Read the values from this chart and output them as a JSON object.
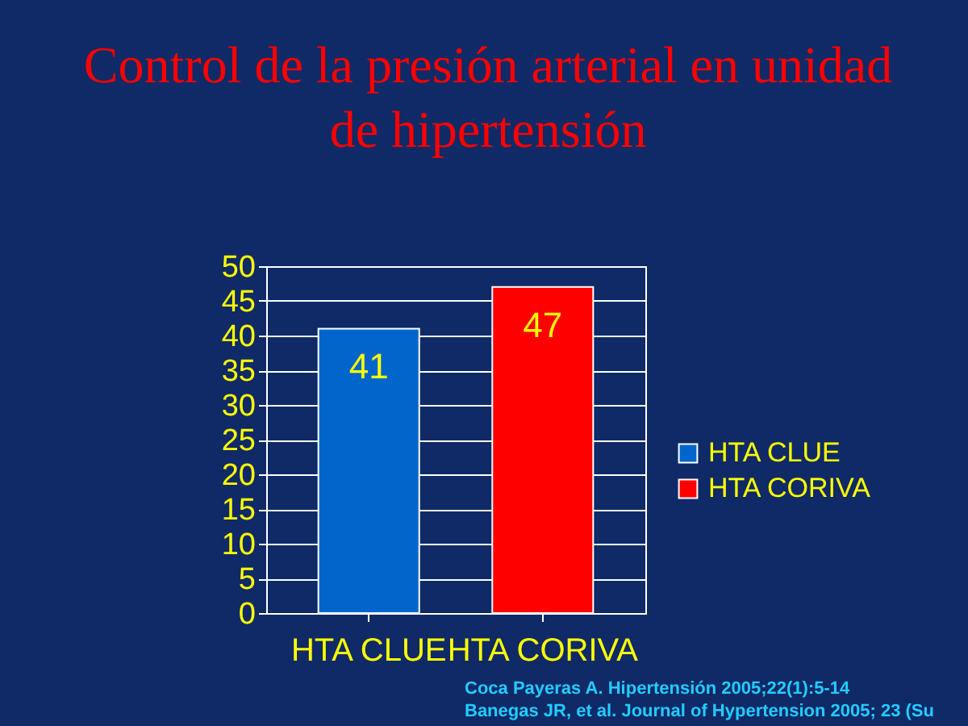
{
  "chart_data": {
    "type": "bar",
    "title": "Control de la presión arterial en unidad de hipertensión",
    "categories": [
      "HTA CLUE",
      "HTA CORIVA"
    ],
    "series": [
      {
        "name": "HTA CLUE",
        "color": "#0066cc",
        "values": [
          41,
          null
        ]
      },
      {
        "name": "HTA CORIVA",
        "color": "#ff0000",
        "values": [
          null,
          47
        ]
      }
    ],
    "ylim": [
      0,
      50
    ],
    "yticks": [
      0,
      5,
      10,
      15,
      20,
      25,
      30,
      35,
      40,
      45,
      50
    ],
    "grid": "y",
    "legend": "right",
    "data_labels": true,
    "annotations": [
      "Coca Payeras A. Hipertensión 2005;22(1):5-14",
      "Banegas JR, et al. Journal of Hypertension 2005; 23 (Su"
    ]
  }
}
